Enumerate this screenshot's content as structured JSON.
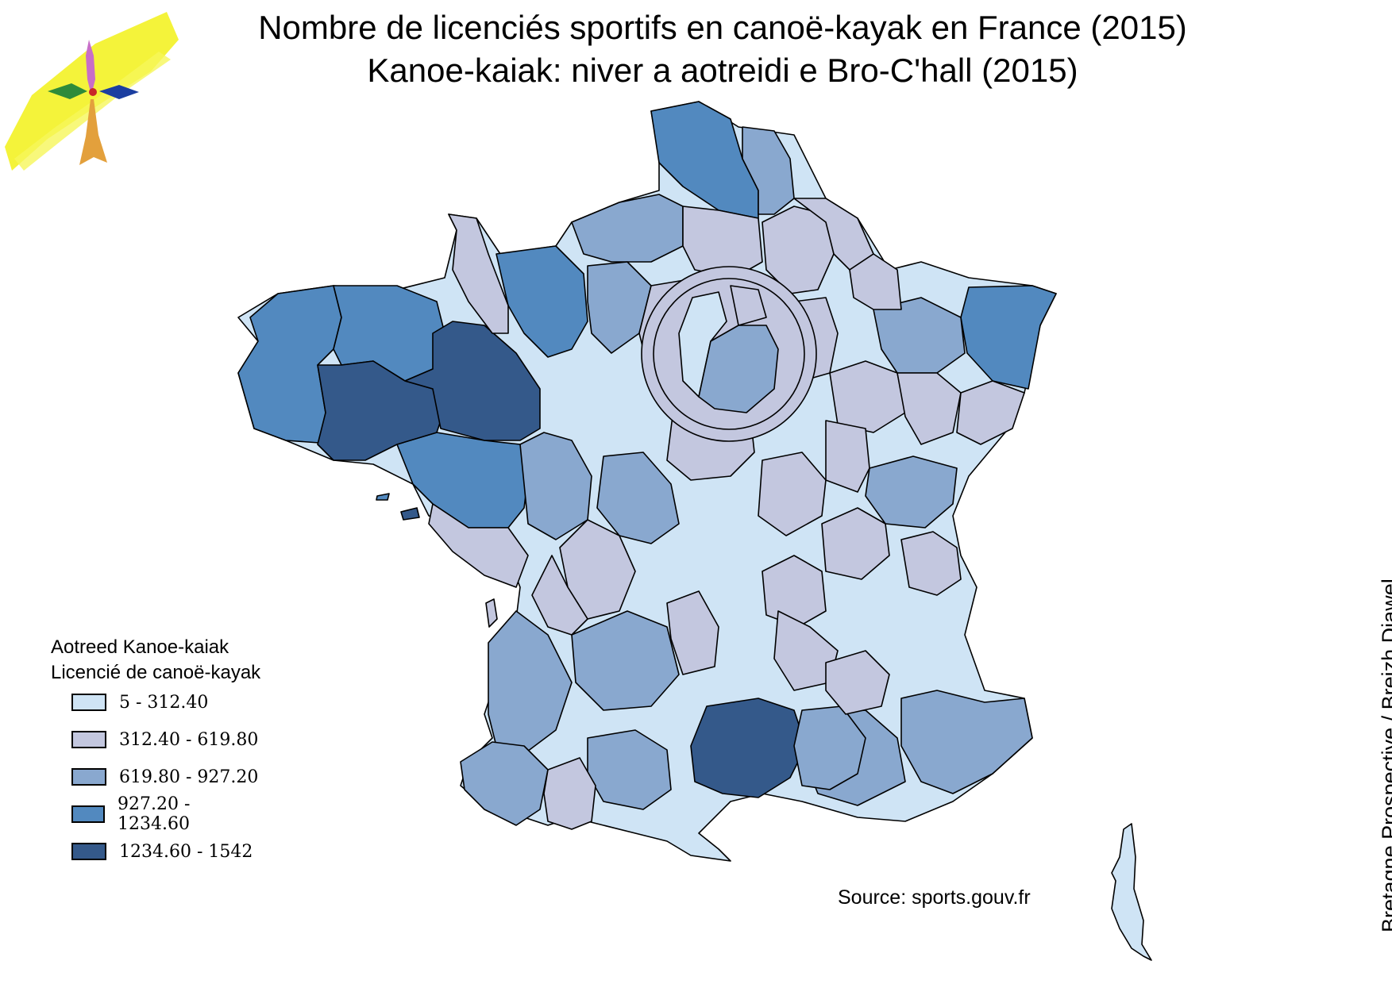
{
  "title": {
    "line1": "Nombre de licenciés sportifs en canoë-kayak en France (2015)",
    "line2": "Kanoe-kaiak: niver a aotreidi e Bro-C'hall (2015)"
  },
  "legend": {
    "title_br": "Aotreed Kanoe-kaiak",
    "title_fr": "Licencié de canoë-kayak",
    "classes": [
      {
        "label": "5 - 312.40",
        "color": "#cfe4f5"
      },
      {
        "label": "312.40 - 619.80",
        "color": "#c3c7df"
      },
      {
        "label": "619.80 - 927.20",
        "color": "#89a8cf"
      },
      {
        "label": "927.20 - 1234.60",
        "color": "#5289bf"
      },
      {
        "label": "1234.60 - 1542",
        "color": "#34598a"
      }
    ]
  },
  "source": "Source: sports.gouv.fr",
  "credit": "Bretagne Prospective / Breizh Diawel",
  "logo": {
    "name": "bretagne-prospective-logo",
    "colors": [
      "#f4f33a",
      "#c86ec8",
      "#e3a03c",
      "#2e8b3a",
      "#1b3ea0",
      "#c82828"
    ]
  }
}
